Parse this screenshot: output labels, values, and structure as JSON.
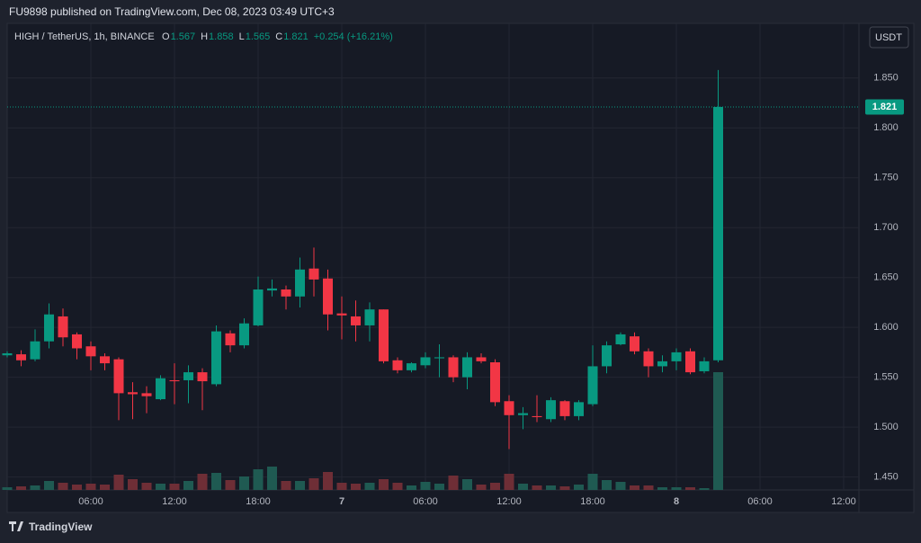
{
  "header": {
    "published": "FU9898 published on TradingView.com, Dec 08, 2023 03:49 UTC+3"
  },
  "chart_data": {
    "type": "candlestick",
    "symbol": "HIGH / TetherUS, 1h, BINANCE",
    "ohlc_labels": [
      "O",
      "H",
      "L",
      "C"
    ],
    "change": "+0.254 (+16.21%)",
    "currency": "USDT",
    "categories": [
      null,
      null,
      null,
      null,
      null,
      null,
      "06:00",
      null,
      null,
      null,
      null,
      null,
      "12:00",
      null,
      null,
      null,
      null,
      null,
      "18:00",
      null,
      null,
      null,
      null,
      null,
      "7",
      null,
      null,
      null,
      null,
      null,
      "06:00",
      null,
      null,
      null,
      null,
      null,
      "12:00",
      null,
      null,
      null,
      null,
      null,
      "18:00",
      null,
      null,
      null,
      null,
      null,
      "8",
      null,
      null,
      null,
      null,
      null,
      "06:00",
      null,
      null,
      null,
      null,
      null,
      "12:00",
      null
    ],
    "open": [
      1.572,
      1.573,
      1.568,
      1.586,
      1.611,
      1.593,
      1.581,
      1.571,
      1.568,
      1.535,
      1.534,
      1.528,
      1.547,
      1.547,
      1.555,
      1.543,
      1.594,
      1.582,
      1.602,
      1.637,
      1.638,
      1.631,
      1.659,
      1.649,
      1.614,
      1.611,
      1.602,
      1.618,
      1.567,
      1.557,
      1.562,
      1.569,
      1.57,
      1.55,
      1.57,
      1.565,
      1.526,
      1.512,
      1.511,
      1.508,
      1.526,
      1.511,
      1.523,
      1.561,
      1.583,
      1.591,
      1.576,
      1.561,
      1.566,
      1.576,
      1.556,
      1.567,
      null,
      null,
      null,
      null,
      null,
      null,
      null,
      null,
      null,
      null
    ],
    "high": [
      1.576,
      1.577,
      1.598,
      1.624,
      1.619,
      1.595,
      1.586,
      1.574,
      1.57,
      1.545,
      1.541,
      1.552,
      1.564,
      1.562,
      1.559,
      1.602,
      1.597,
      1.609,
      1.651,
      1.648,
      1.642,
      1.67,
      1.68,
      1.658,
      1.631,
      1.627,
      1.625,
      1.618,
      1.57,
      1.565,
      1.575,
      1.583,
      1.572,
      1.575,
      1.574,
      1.568,
      1.532,
      1.52,
      1.532,
      1.53,
      1.527,
      1.527,
      1.582,
      1.586,
      1.595,
      1.595,
      1.579,
      1.572,
      1.579,
      1.579,
      1.57,
      1.858,
      null,
      null,
      null,
      null,
      null,
      null,
      null,
      null,
      null,
      null
    ],
    "low": [
      1.57,
      1.561,
      1.566,
      1.579,
      1.581,
      1.568,
      1.557,
      1.557,
      1.507,
      1.508,
      1.514,
      1.527,
      1.523,
      1.524,
      1.517,
      1.541,
      1.575,
      1.579,
      1.601,
      1.631,
      1.618,
      1.62,
      1.631,
      1.597,
      1.588,
      1.586,
      1.586,
      1.564,
      1.554,
      1.555,
      1.559,
      1.55,
      1.545,
      1.538,
      1.564,
      1.521,
      1.478,
      1.498,
      1.505,
      1.505,
      1.507,
      1.507,
      1.521,
      1.554,
      1.582,
      1.573,
      1.55,
      1.555,
      1.557,
      1.553,
      1.554,
      1.565,
      null,
      null,
      null,
      null,
      null,
      null,
      null,
      null,
      null,
      null
    ],
    "close": [
      1.574,
      1.567,
      1.586,
      1.613,
      1.59,
      1.579,
      1.571,
      1.564,
      1.534,
      1.533,
      1.531,
      1.549,
      1.546,
      1.555,
      1.546,
      1.596,
      1.582,
      1.604,
      1.638,
      1.639,
      1.631,
      1.658,
      1.648,
      1.613,
      1.612,
      1.602,
      1.618,
      1.566,
      1.557,
      1.564,
      1.57,
      1.57,
      1.55,
      1.57,
      1.566,
      1.525,
      1.512,
      1.514,
      1.51,
      1.527,
      1.511,
      1.525,
      1.561,
      1.582,
      1.593,
      1.576,
      1.561,
      1.566,
      1.575,
      1.555,
      1.566,
      1.821,
      null,
      null,
      null,
      null,
      null,
      null,
      null,
      null,
      null,
      null
    ],
    "volume": [
      3,
      4,
      5,
      10,
      8,
      6,
      7,
      6,
      17,
      12,
      8,
      7,
      7,
      10,
      18,
      19,
      11,
      15,
      23,
      26,
      10,
      10,
      13,
      20,
      8,
      7,
      8,
      12,
      8,
      5,
      9,
      7,
      16,
      12,
      6,
      8,
      18,
      7,
      5,
      5,
      4,
      6,
      18,
      11,
      9,
      5,
      5,
      3,
      3,
      3,
      2,
      131,
      null,
      null,
      null,
      null,
      null,
      null,
      null,
      null,
      null,
      null
    ],
    "up_color": "#089981",
    "down_color": "#f23645",
    "ylim": [
      1.437,
      1.903
    ],
    "yticks": [
      {
        "value": 1.45,
        "label": "1.450"
      },
      {
        "value": 1.5,
        "label": "1.500"
      },
      {
        "value": 1.55,
        "label": "1.550"
      },
      {
        "value": 1.6,
        "label": "1.600"
      },
      {
        "value": 1.65,
        "label": "1.650"
      },
      {
        "value": 1.7,
        "label": "1.700"
      },
      {
        "value": 1.75,
        "label": "1.750"
      },
      {
        "value": 1.8,
        "label": "1.800"
      },
      {
        "value": 1.85,
        "label": "1.850"
      }
    ],
    "grid": true
  },
  "footer": {
    "brand": "TradingView"
  }
}
